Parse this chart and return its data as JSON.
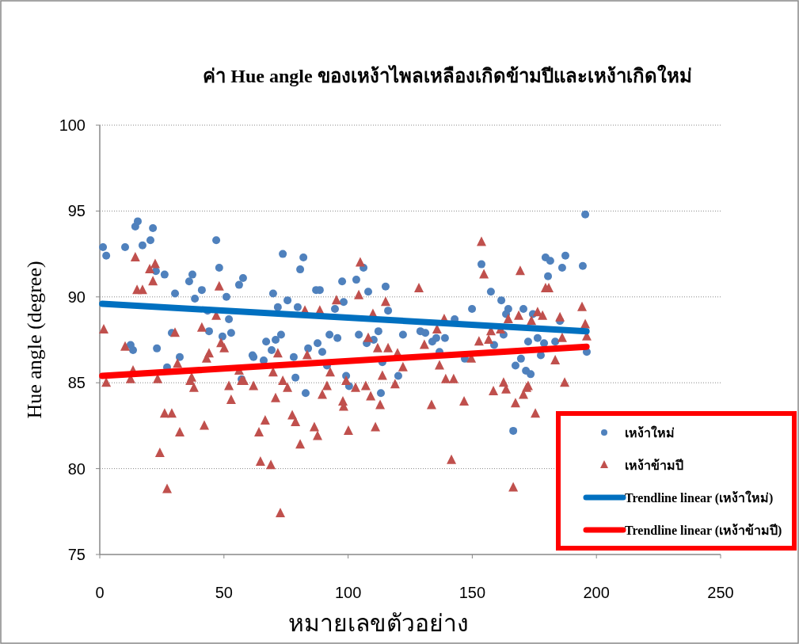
{
  "chart_data": {
    "type": "scatter",
    "title": "ค่า Hue angle ของเหง้าไพลเหลืองเกิดข้ามปีและเหง้าเกิดใหม่",
    "xlabel": "หมายเลขตัวอย่าง",
    "ylabel": "Hue angle (degree)",
    "xlim": [
      0,
      250
    ],
    "ylim": [
      75,
      100
    ],
    "xticks": [
      0,
      50,
      100,
      150,
      200,
      250
    ],
    "yticks": [
      75,
      80,
      85,
      90,
      95,
      100
    ],
    "grid": "y",
    "legend": "bottom right",
    "series": [
      {
        "name": "เหง้าใหม่",
        "marker": "circle",
        "color": "#4f81bd",
        "x": [
          1.3,
          2.6,
          10.2,
          14.3,
          15.3,
          17.2,
          20.4,
          21.4,
          22.6,
          26.1,
          30.3,
          37.3,
          36.0,
          41.1,
          38.3,
          46.9,
          48.1,
          56.1,
          57.7,
          51.0,
          43.4,
          52.0,
          29.0,
          44.0,
          49.4,
          52.9,
          12.4,
          13.4,
          23.0,
          32.2,
          27.1,
          61.5,
          57.1,
          61.9,
          66.0,
          67.0,
          69.2,
          70.8,
          73.0,
          69.8,
          71.7,
          73.7,
          75.6,
          80.7,
          82.0,
          79.7,
          78.1,
          78.8,
          82.9,
          83.9,
          87.7,
          89.6,
          87.1,
          88.6,
          92.5,
          95.7,
          94.7,
          97.6,
          98.2,
          91.5,
          99.2,
          100.4,
          103.3,
          104.3,
          106.2,
          108.1,
          107.5,
          110.3,
          112.2,
          113.8,
          113.2,
          115.1,
          116.1,
          120.2,
          122.1,
          129.1,
          131.1,
          133.9,
          135.5,
          139.0,
          136.8,
          142.9,
          147.0,
          149.9,
          153.7,
          157.5,
          158.8,
          161.7,
          162.6,
          164.5,
          163.6,
          167.4,
          169.6,
          170.6,
          171.6,
          173.5,
          172.5,
          174.4,
          176.3,
          177.6,
          178.9,
          183.4,
          166.5,
          179.5,
          181.4,
          180.5,
          186.2,
          187.5,
          194.5,
          195.5,
          196.1,
          185.3
        ],
        "values": [
          92.9,
          92.4,
          92.9,
          94.1,
          94.4,
          93.0,
          93.3,
          94.0,
          91.5,
          91.3,
          90.2,
          91.3,
          90.9,
          90.4,
          89.9,
          93.3,
          91.7,
          90.7,
          91.1,
          90.0,
          89.2,
          88.7,
          87.9,
          88.0,
          87.7,
          87.9,
          87.2,
          86.9,
          87.0,
          86.5,
          85.9,
          86.6,
          85.2,
          86.5,
          86.3,
          87.4,
          86.9,
          87.5,
          87.8,
          90.2,
          89.4,
          92.5,
          89.8,
          91.6,
          92.3,
          89.4,
          86.5,
          85.3,
          84.4,
          87.0,
          87.3,
          86.8,
          90.4,
          90.4,
          87.8,
          87.6,
          89.3,
          90.9,
          89.7,
          86.0,
          85.4,
          84.8,
          91.0,
          87.8,
          91.7,
          90.3,
          87.3,
          87.5,
          88.0,
          86.2,
          84.4,
          90.6,
          89.2,
          85.4,
          87.8,
          88.0,
          87.9,
          87.4,
          87.6,
          87.6,
          86.8,
          88.7,
          86.4,
          89.3,
          91.9,
          90.3,
          87.2,
          89.8,
          87.8,
          89.3,
          89.0,
          86.0,
          86.4,
          89.3,
          85.7,
          85.5,
          87.4,
          89.0,
          87.6,
          86.6,
          87.3,
          87.4,
          82.2,
          92.3,
          92.1,
          91.2,
          91.7,
          92.4,
          91.8,
          94.8,
          86.8,
          88.6
        ]
      },
      {
        "name": "เหง้าข้ามปี",
        "marker": "triangle",
        "color": "#c0504d",
        "x": [
          1.6,
          2.6,
          10.2,
          14.3,
          15.0,
          17.2,
          20.1,
          22.3,
          21.4,
          13.4,
          12.4,
          23.3,
          26.1,
          29.0,
          32.2,
          24.2,
          27.1,
          30.3,
          31.3,
          36.4,
          37.0,
          37.9,
          41.1,
          42.1,
          43.0,
          44.0,
          46.9,
          48.1,
          48.8,
          50.1,
          52.0,
          52.9,
          56.1,
          57.1,
          58.0,
          61.9,
          64.1,
          64.7,
          68.9,
          66.6,
          69.8,
          70.8,
          71.7,
          72.7,
          73.7,
          75.6,
          77.5,
          78.8,
          80.7,
          82.6,
          83.5,
          86.4,
          87.7,
          88.6,
          89.6,
          91.5,
          92.8,
          95.3,
          97.9,
          98.2,
          99.2,
          100.1,
          103.0,
          104.3,
          104.9,
          107.1,
          108.1,
          109.1,
          110.0,
          111.0,
          111.9,
          112.9,
          113.8,
          115.1,
          116.1,
          118.9,
          119.9,
          122.1,
          128.5,
          130.7,
          135.8,
          133.6,
          136.8,
          138.7,
          139.3,
          142.5,
          141.6,
          146.7,
          149.6,
          152.7,
          153.7,
          154.7,
          156.6,
          157.5,
          158.5,
          161.4,
          162.6,
          163.6,
          164.5,
          166.5,
          167.4,
          168.7,
          169.3,
          170.6,
          171.9,
          172.5,
          173.8,
          175.4,
          176.3,
          178.3,
          179.5,
          180.8,
          183.4,
          185.3,
          186.2,
          187.2,
          194.2,
          195.5,
          196.1
        ],
        "values": [
          88.1,
          85.0,
          87.1,
          92.3,
          90.4,
          90.4,
          91.6,
          91.9,
          90.9,
          85.7,
          85.2,
          85.2,
          83.2,
          83.2,
          82.1,
          80.9,
          78.8,
          87.9,
          86.1,
          85.1,
          85.3,
          84.7,
          88.2,
          82.5,
          86.4,
          86.7,
          88.9,
          90.6,
          87.3,
          87.0,
          84.8,
          84.0,
          85.7,
          85.1,
          85.1,
          84.8,
          82.1,
          80.4,
          80.2,
          82.8,
          85.6,
          84.1,
          86.7,
          77.4,
          85.1,
          84.7,
          83.1,
          82.7,
          81.4,
          89.2,
          86.6,
          82.4,
          81.9,
          89.2,
          84.3,
          84.8,
          85.6,
          89.8,
          83.9,
          83.6,
          85.1,
          82.2,
          84.7,
          90.1,
          92.0,
          84.8,
          87.6,
          84.2,
          89.0,
          82.4,
          87.0,
          83.7,
          85.4,
          89.7,
          87.0,
          84.9,
          86.7,
          85.9,
          90.5,
          87.2,
          88.1,
          83.7,
          86.0,
          88.7,
          85.2,
          85.2,
          80.5,
          83.9,
          86.4,
          87.4,
          93.2,
          91.3,
          87.5,
          88.0,
          84.5,
          88.1,
          85.0,
          84.6,
          88.7,
          78.9,
          83.8,
          88.9,
          91.5,
          84.3,
          84.7,
          84.8,
          88.6,
          83.2,
          89.1,
          88.9,
          90.5,
          90.5,
          86.3,
          88.8,
          87.6,
          85.0,
          89.4,
          88.4,
          87.7
        ]
      },
      {
        "name": "Trendline linear (เหง้าใหม่)",
        "type": "line",
        "marker": "none",
        "color": "#0070c0",
        "x": [
          1,
          196
        ],
        "values": [
          89.6,
          88.0
        ]
      },
      {
        "name": "Trendline linear (เหง้าข้ามปี)",
        "type": "line",
        "marker": "none",
        "color": "#ff0000",
        "x": [
          1,
          196
        ],
        "values": [
          85.4,
          87.1
        ]
      }
    ]
  }
}
